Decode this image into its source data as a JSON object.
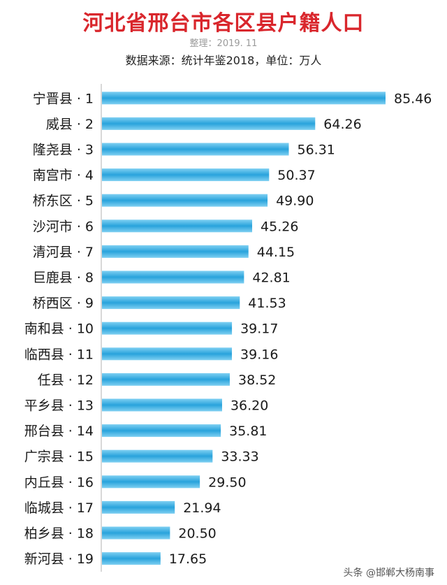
{
  "header": {
    "title": "河北省邢台市各区县户籍人口",
    "subtitle": "整理：2019. 11",
    "source": "数据来源：统计年鉴2018，单位：万人"
  },
  "watermark": "头条 @邯郸大杨南事",
  "colors": {
    "bar": "#29a3dc",
    "bar_light": "#7fd0f2",
    "title": "#d9262c"
  },
  "chart_data": {
    "type": "bar",
    "orientation": "horizontal",
    "title": "河北省邢台市各区县户籍人口",
    "categories": [
      "宁晋县 · 1",
      "威县 · 2",
      "隆尧县 · 3",
      "南宫市 · 4",
      "桥东区 · 5",
      "沙河市 · 6",
      "清河县 · 7",
      "巨鹿县 · 8",
      "桥西区 · 9",
      "南和县 · 10",
      "临西县 · 11",
      "任县 · 12",
      "平乡县 · 13",
      "邢台县 · 14",
      "广宗县 · 15",
      "内丘县 · 16",
      "临城县 · 17",
      "柏乡县 · 18",
      "新河县 · 19"
    ],
    "values": [
      85.46,
      64.26,
      56.31,
      50.37,
      49.9,
      45.26,
      44.15,
      42.81,
      41.53,
      39.17,
      39.16,
      38.52,
      36.2,
      35.81,
      33.33,
      29.5,
      21.94,
      20.5,
      17.65
    ],
    "value_labels": [
      "85.46",
      "64.26",
      "56.31",
      "50.37",
      "49.90",
      "45.26",
      "44.15",
      "42.81",
      "41.53",
      "39.17",
      "39.16",
      "38.52",
      "36.20",
      "35.81",
      "33.33",
      "29.50",
      "21.94",
      "20.50",
      "17.65"
    ],
    "xlim": [
      0,
      85.46
    ],
    "grid": false,
    "legend": "none"
  }
}
